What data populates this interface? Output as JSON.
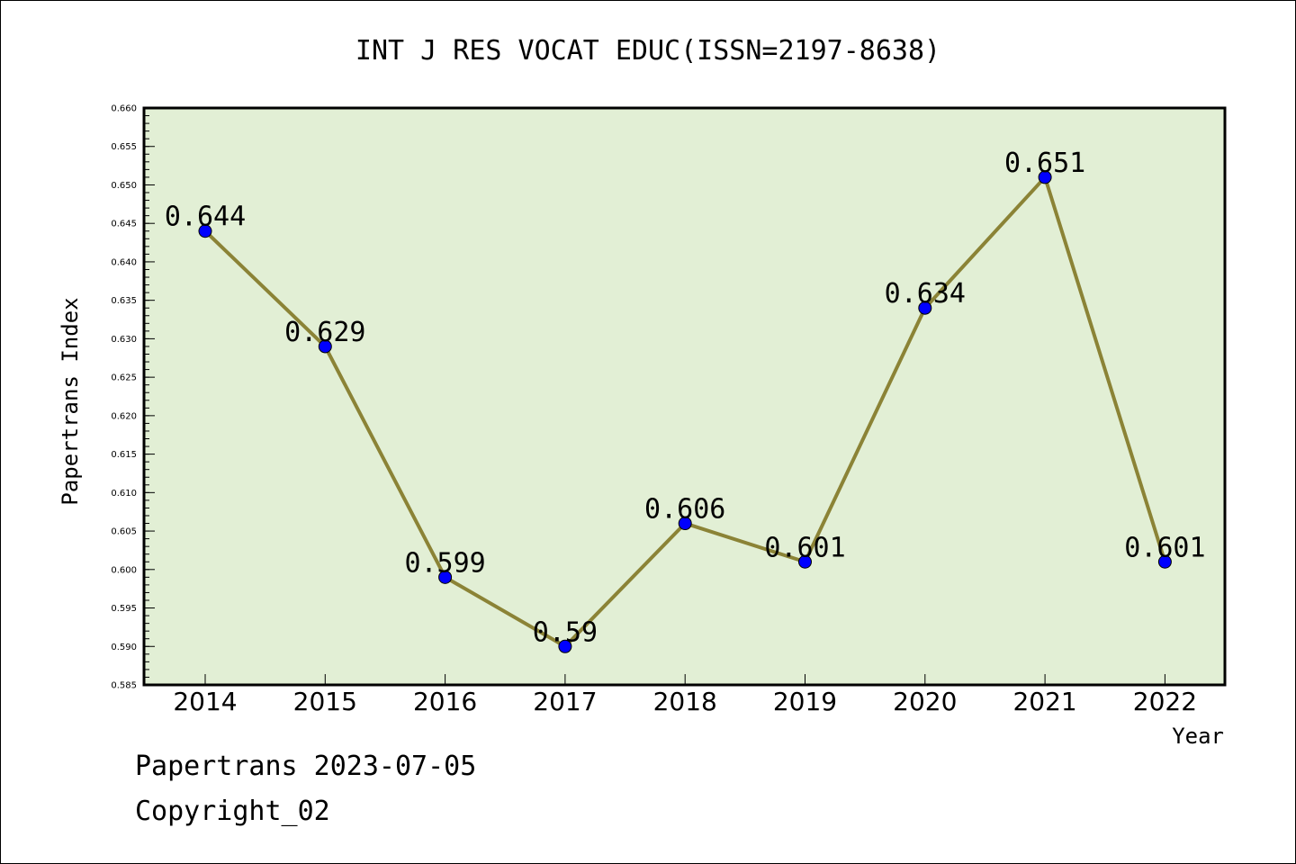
{
  "chart_data": {
    "type": "line",
    "title": "INT J RES VOCAT EDUC(ISSN=2197-8638)",
    "xlabel": "Year",
    "ylabel": "Papertrans Index",
    "categories": [
      "2014",
      "2015",
      "2016",
      "2017",
      "2018",
      "2019",
      "2020",
      "2021",
      "2022"
    ],
    "series": [
      {
        "values": [
          0.644,
          0.629,
          0.599,
          0.59,
          0.606,
          0.601,
          0.634,
          0.651,
          0.601
        ],
        "labels": [
          "0.644",
          "0.629",
          "0.599",
          "0.59",
          "0.606",
          "0.601",
          "0.634",
          "0.651",
          "0.601"
        ]
      }
    ],
    "ylim": [
      0.585,
      0.66
    ],
    "yticks": [
      "0.585",
      "0.590",
      "0.595",
      "0.600",
      "0.605",
      "0.610",
      "0.615",
      "0.620",
      "0.625",
      "0.630",
      "0.635",
      "0.640",
      "0.645",
      "0.650",
      "0.655",
      "0.660"
    ],
    "grid": false,
    "colors": {
      "plot_background": "#e2efd5",
      "line": "#8b8336",
      "marker": "#0000ff"
    }
  },
  "footer": {
    "date_line": "Papertrans 2023-07-05",
    "copyright": "Copyright_02"
  }
}
